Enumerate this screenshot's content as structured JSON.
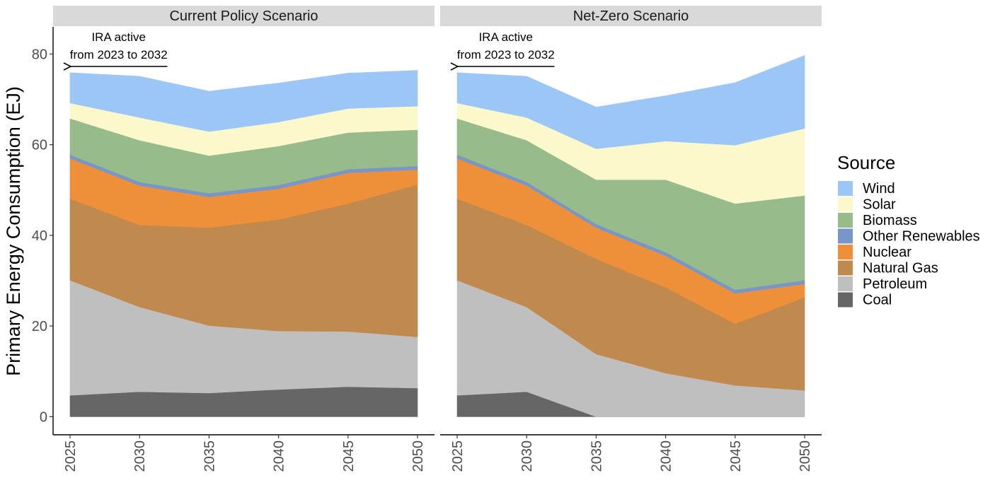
{
  "chart_data": {
    "type": "area",
    "stacked": true,
    "ylabel": "Primary Energy Consumption (EJ)",
    "xlabel": "",
    "x": [
      2025,
      2030,
      2035,
      2040,
      2045,
      2050
    ],
    "y_ticks": [
      0,
      20,
      40,
      60,
      80
    ],
    "ylim": [
      -4,
      86
    ],
    "legend": {
      "title": "Source",
      "position": "right",
      "entries": [
        "Wind",
        "Solar",
        "Biomass",
        "Other Renewables",
        "Nuclear",
        "Natural Gas",
        "Petroleum",
        "Coal"
      ]
    },
    "colors": {
      "Coal": "#666666",
      "Petroleum": "#bfbfbf",
      "Natural Gas": "#c0894d",
      "Nuclear": "#ee8f3a",
      "Other Renewables": "#7896c8",
      "Biomass": "#97bb8a",
      "Solar": "#fbf8cc",
      "Wind": "#9bc6f6",
      "Strip": "#d9d9d9"
    },
    "stack_order": [
      "Coal",
      "Petroleum",
      "Natural Gas",
      "Nuclear",
      "Other Renewables",
      "Biomass",
      "Solar",
      "Wind"
    ],
    "panels": [
      {
        "title": "Current Policy Scenario",
        "annotation": [
          "IRA active",
          "from 2023 to 2032"
        ],
        "arrow_range": [
          2032,
          2025
        ],
        "series": [
          {
            "name": "Coal",
            "values": [
              4.7,
              5.5,
              5.2,
              6.0,
              6.6,
              6.3
            ]
          },
          {
            "name": "Petroleum",
            "values": [
              25.4,
              18.7,
              14.9,
              12.9,
              12.2,
              11.3
            ]
          },
          {
            "name": "Natural Gas",
            "values": [
              18.0,
              18.1,
              21.6,
              24.6,
              28.2,
              33.6
            ]
          },
          {
            "name": "Nuclear",
            "values": [
              8.9,
              8.7,
              6.8,
              6.8,
              6.8,
              3.3
            ]
          },
          {
            "name": "Other Renewables",
            "values": [
              0.8,
              0.8,
              0.8,
              0.8,
              0.8,
              0.8
            ]
          },
          {
            "name": "Biomass",
            "values": [
              8.0,
              9.2,
              8.3,
              8.6,
              8.1,
              8.0
            ]
          },
          {
            "name": "Solar",
            "values": [
              3.4,
              5.0,
              5.3,
              5.3,
              5.3,
              5.2
            ]
          },
          {
            "name": "Wind",
            "values": [
              6.7,
              9.1,
              8.9,
              8.6,
              7.8,
              7.9
            ]
          }
        ]
      },
      {
        "title": "Net-Zero Scenario",
        "annotation": [
          "IRA active",
          "from 2023 to 2032"
        ],
        "arrow_range": [
          2032,
          2025
        ],
        "series": [
          {
            "name": "Coal",
            "values": [
              4.7,
              5.5,
              0.0,
              0.0,
              0.0,
              0.0
            ]
          },
          {
            "name": "Petroleum",
            "values": [
              25.4,
              18.7,
              13.8,
              9.6,
              6.9,
              5.8
            ]
          },
          {
            "name": "Natural Gas",
            "values": [
              18.0,
              18.1,
              21.0,
              18.9,
              13.6,
              20.5
            ]
          },
          {
            "name": "Nuclear",
            "values": [
              8.9,
              8.7,
              6.9,
              7.0,
              6.7,
              3.0
            ]
          },
          {
            "name": "Other Renewables",
            "values": [
              0.8,
              0.8,
              0.8,
              0.8,
              0.8,
              0.8
            ]
          },
          {
            "name": "Biomass",
            "values": [
              8.0,
              9.2,
              9.8,
              16.0,
              19.0,
              18.7
            ]
          },
          {
            "name": "Solar",
            "values": [
              3.4,
              5.0,
              6.8,
              8.5,
              12.9,
              14.8
            ]
          },
          {
            "name": "Wind",
            "values": [
              6.7,
              9.1,
              9.2,
              10.0,
              13.8,
              16.1
            ]
          }
        ]
      }
    ]
  }
}
